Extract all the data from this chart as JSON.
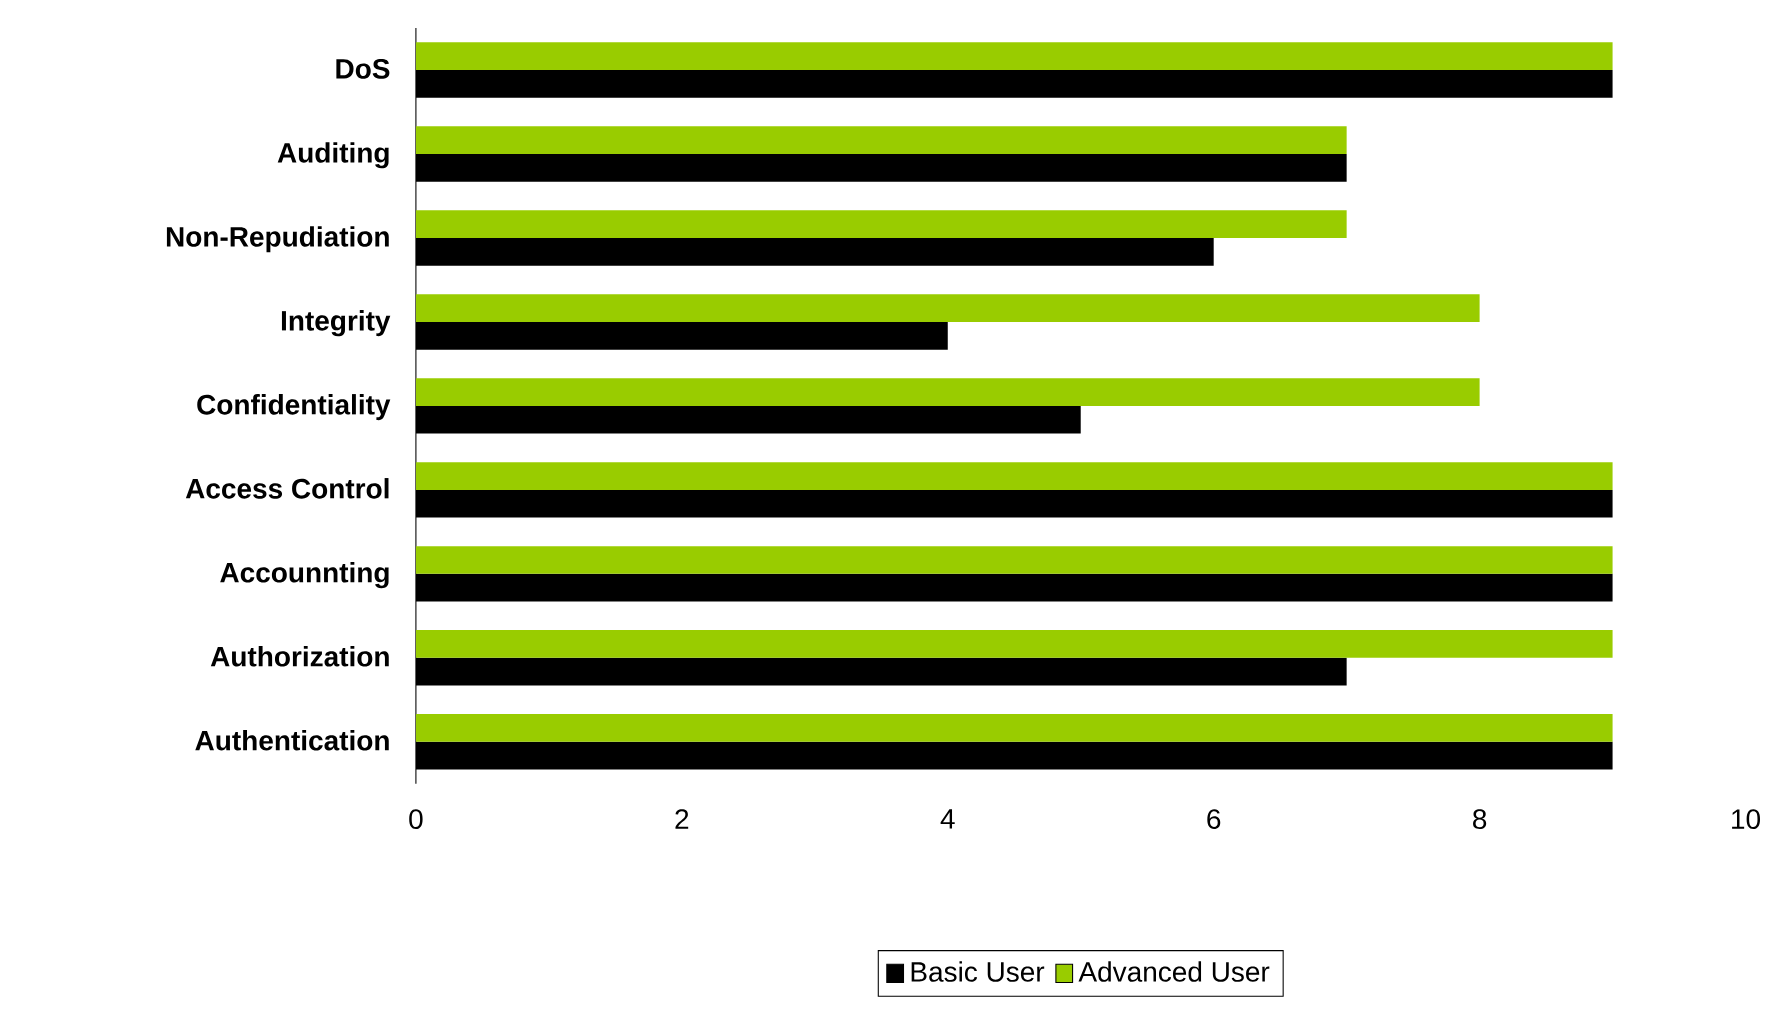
{
  "chart_data": {
    "type": "bar",
    "orientation": "horizontal",
    "categories": [
      "DoS",
      "Auditing",
      "Non-Repudiation",
      "Integrity",
      "Confidentiality",
      "Access Control",
      "Accounnting",
      "Authorization",
      "Authentication"
    ],
    "series": [
      {
        "name": "Basic User",
        "color": "#000000",
        "values": [
          9,
          7,
          6,
          4,
          5,
          9,
          9,
          7,
          9
        ]
      },
      {
        "name": "Advanced User",
        "color": "#99cc00",
        "values": [
          9,
          7,
          7,
          8,
          8,
          9,
          9,
          9,
          9
        ]
      }
    ],
    "xlim": [
      0,
      10
    ],
    "xticks": [
      0,
      2,
      4,
      6,
      8,
      10
    ],
    "legend": "bottom"
  }
}
